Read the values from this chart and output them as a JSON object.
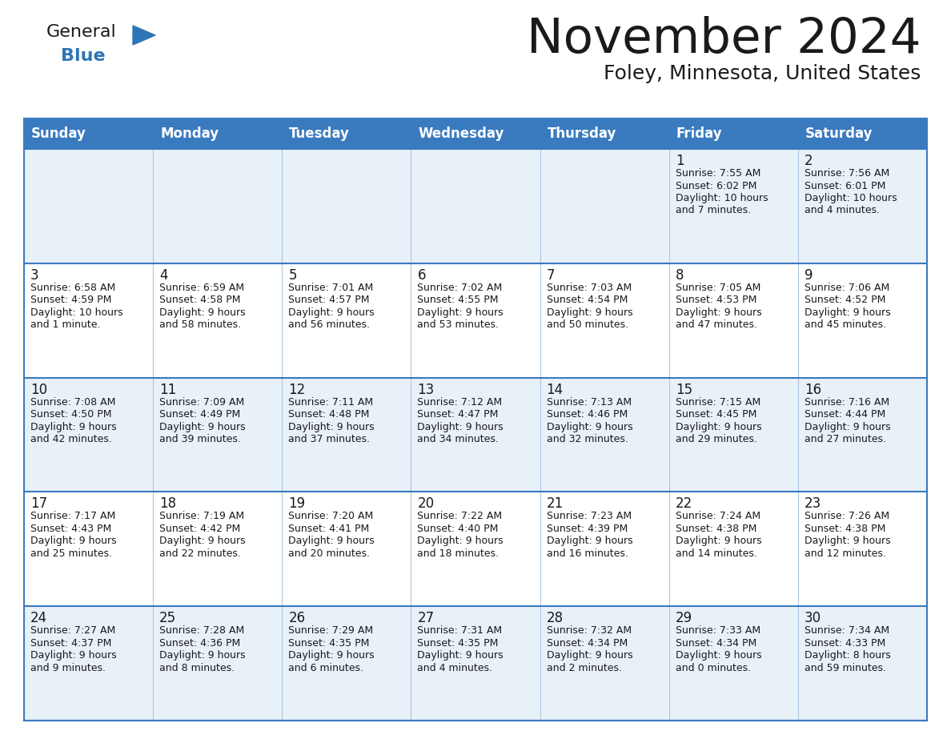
{
  "title": "November 2024",
  "subtitle": "Foley, Minnesota, United States",
  "header_bg": "#3a7abf",
  "header_text_color": "#ffffff",
  "cell_bg_row0": "#e8f0f8",
  "cell_bg_row1": "#ffffff",
  "days_of_week": [
    "Sunday",
    "Monday",
    "Tuesday",
    "Wednesday",
    "Thursday",
    "Friday",
    "Saturday"
  ],
  "calendar_data": [
    [
      {
        "day": "",
        "sunrise": "",
        "sunset": "",
        "daylight": ""
      },
      {
        "day": "",
        "sunrise": "",
        "sunset": "",
        "daylight": ""
      },
      {
        "day": "",
        "sunrise": "",
        "sunset": "",
        "daylight": ""
      },
      {
        "day": "",
        "sunrise": "",
        "sunset": "",
        "daylight": ""
      },
      {
        "day": "",
        "sunrise": "",
        "sunset": "",
        "daylight": ""
      },
      {
        "day": "1",
        "sunrise": "7:55 AM",
        "sunset": "6:02 PM",
        "daylight": "10 hours\nand 7 minutes."
      },
      {
        "day": "2",
        "sunrise": "7:56 AM",
        "sunset": "6:01 PM",
        "daylight": "10 hours\nand 4 minutes."
      }
    ],
    [
      {
        "day": "3",
        "sunrise": "6:58 AM",
        "sunset": "4:59 PM",
        "daylight": "10 hours\nand 1 minute."
      },
      {
        "day": "4",
        "sunrise": "6:59 AM",
        "sunset": "4:58 PM",
        "daylight": "9 hours\nand 58 minutes."
      },
      {
        "day": "5",
        "sunrise": "7:01 AM",
        "sunset": "4:57 PM",
        "daylight": "9 hours\nand 56 minutes."
      },
      {
        "day": "6",
        "sunrise": "7:02 AM",
        "sunset": "4:55 PM",
        "daylight": "9 hours\nand 53 minutes."
      },
      {
        "day": "7",
        "sunrise": "7:03 AM",
        "sunset": "4:54 PM",
        "daylight": "9 hours\nand 50 minutes."
      },
      {
        "day": "8",
        "sunrise": "7:05 AM",
        "sunset": "4:53 PM",
        "daylight": "9 hours\nand 47 minutes."
      },
      {
        "day": "9",
        "sunrise": "7:06 AM",
        "sunset": "4:52 PM",
        "daylight": "9 hours\nand 45 minutes."
      }
    ],
    [
      {
        "day": "10",
        "sunrise": "7:08 AM",
        "sunset": "4:50 PM",
        "daylight": "9 hours\nand 42 minutes."
      },
      {
        "day": "11",
        "sunrise": "7:09 AM",
        "sunset": "4:49 PM",
        "daylight": "9 hours\nand 39 minutes."
      },
      {
        "day": "12",
        "sunrise": "7:11 AM",
        "sunset": "4:48 PM",
        "daylight": "9 hours\nand 37 minutes."
      },
      {
        "day": "13",
        "sunrise": "7:12 AM",
        "sunset": "4:47 PM",
        "daylight": "9 hours\nand 34 minutes."
      },
      {
        "day": "14",
        "sunrise": "7:13 AM",
        "sunset": "4:46 PM",
        "daylight": "9 hours\nand 32 minutes."
      },
      {
        "day": "15",
        "sunrise": "7:15 AM",
        "sunset": "4:45 PM",
        "daylight": "9 hours\nand 29 minutes."
      },
      {
        "day": "16",
        "sunrise": "7:16 AM",
        "sunset": "4:44 PM",
        "daylight": "9 hours\nand 27 minutes."
      }
    ],
    [
      {
        "day": "17",
        "sunrise": "7:17 AM",
        "sunset": "4:43 PM",
        "daylight": "9 hours\nand 25 minutes."
      },
      {
        "day": "18",
        "sunrise": "7:19 AM",
        "sunset": "4:42 PM",
        "daylight": "9 hours\nand 22 minutes."
      },
      {
        "day": "19",
        "sunrise": "7:20 AM",
        "sunset": "4:41 PM",
        "daylight": "9 hours\nand 20 minutes."
      },
      {
        "day": "20",
        "sunrise": "7:22 AM",
        "sunset": "4:40 PM",
        "daylight": "9 hours\nand 18 minutes."
      },
      {
        "day": "21",
        "sunrise": "7:23 AM",
        "sunset": "4:39 PM",
        "daylight": "9 hours\nand 16 minutes."
      },
      {
        "day": "22",
        "sunrise": "7:24 AM",
        "sunset": "4:38 PM",
        "daylight": "9 hours\nand 14 minutes."
      },
      {
        "day": "23",
        "sunrise": "7:26 AM",
        "sunset": "4:38 PM",
        "daylight": "9 hours\nand 12 minutes."
      }
    ],
    [
      {
        "day": "24",
        "sunrise": "7:27 AM",
        "sunset": "4:37 PM",
        "daylight": "9 hours\nand 9 minutes."
      },
      {
        "day": "25",
        "sunrise": "7:28 AM",
        "sunset": "4:36 PM",
        "daylight": "9 hours\nand 8 minutes."
      },
      {
        "day": "26",
        "sunrise": "7:29 AM",
        "sunset": "4:35 PM",
        "daylight": "9 hours\nand 6 minutes."
      },
      {
        "day": "27",
        "sunrise": "7:31 AM",
        "sunset": "4:35 PM",
        "daylight": "9 hours\nand 4 minutes."
      },
      {
        "day": "28",
        "sunrise": "7:32 AM",
        "sunset": "4:34 PM",
        "daylight": "9 hours\nand 2 minutes."
      },
      {
        "day": "29",
        "sunrise": "7:33 AM",
        "sunset": "4:34 PM",
        "daylight": "9 hours\nand 0 minutes."
      },
      {
        "day": "30",
        "sunrise": "7:34 AM",
        "sunset": "4:33 PM",
        "daylight": "8 hours\nand 59 minutes."
      }
    ]
  ],
  "logo_text1": "General",
  "logo_text2": "Blue",
  "logo_color1": "#1a1a1a",
  "logo_color2": "#2e75b6",
  "logo_triangle_color": "#2e75b6",
  "divider_color": "#3a7abf",
  "vert_line_color": "#aec6e0"
}
